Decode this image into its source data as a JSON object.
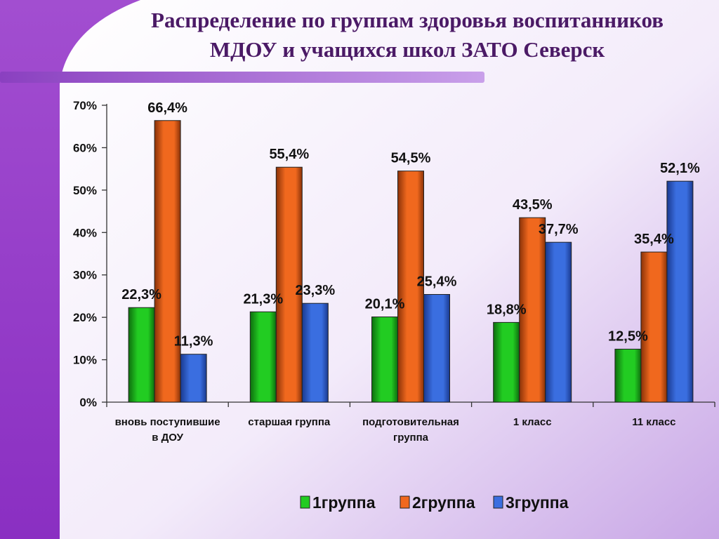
{
  "slide": {
    "title_line1": "Распределение по группам здоровья воспитанников",
    "title_line2": "МДОУ и учащихся школ ЗАТО Северск"
  },
  "colors": {
    "series": [
      "#22cc22",
      "#f0681e",
      "#3a6ee0"
    ],
    "series_dark": [
      "#0e6e0e",
      "#8a3208",
      "#1a3a90"
    ],
    "title": "#4b1a66"
  },
  "chart_data": {
    "type": "bar",
    "title": "",
    "xlabel": "",
    "ylabel": "",
    "ylim": [
      0,
      70
    ],
    "yticks": [
      0,
      10,
      20,
      30,
      40,
      50,
      60,
      70
    ],
    "ytick_labels": [
      "0%",
      "10%",
      "20%",
      "30%",
      "40%",
      "50%",
      "60%",
      "70%"
    ],
    "grid": false,
    "legend_position": "bottom",
    "categories": [
      [
        "вновь поступившие",
        "в ДОУ"
      ],
      [
        "старшая группа"
      ],
      [
        "подготовительная",
        "группа"
      ],
      [
        "1 класс"
      ],
      [
        "11 класс"
      ]
    ],
    "series": [
      {
        "name": "1группа",
        "values": [
          22.3,
          21.3,
          20.1,
          18.8,
          12.5
        ],
        "labels": [
          "22,3%",
          "21,3%",
          "20,1%",
          "18,8%",
          "12,5%"
        ]
      },
      {
        "name": "2группа",
        "values": [
          66.4,
          55.4,
          54.5,
          43.5,
          35.4
        ],
        "labels": [
          "66,4%",
          "55,4%",
          "54,5%",
          "43,5%",
          "35,4%"
        ]
      },
      {
        "name": "3группа",
        "values": [
          11.3,
          23.3,
          25.4,
          37.7,
          52.1
        ],
        "labels": [
          "11,3%",
          "23,3%",
          "25,4%",
          "37,7%",
          "52,1%"
        ]
      }
    ]
  }
}
